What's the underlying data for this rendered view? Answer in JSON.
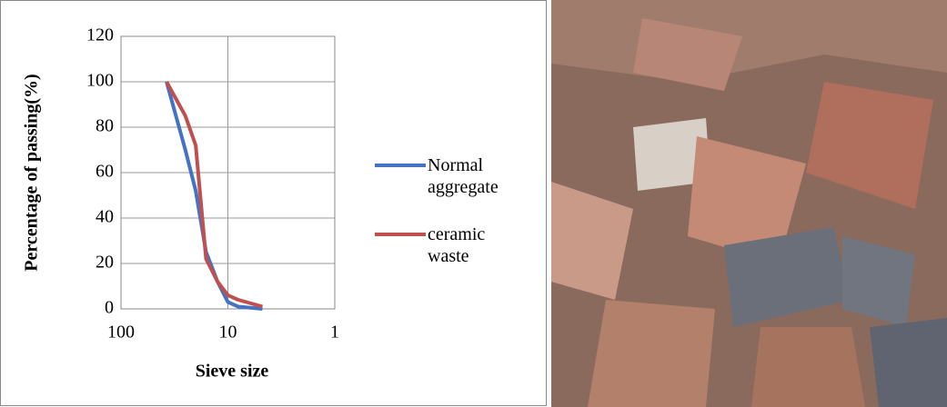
{
  "chart_data": {
    "type": "line",
    "x_label": "Sieve size",
    "y_label": "Percentage of passing(%)",
    "x": [
      37.5,
      25,
      20,
      16,
      12.5,
      10,
      8,
      4.75
    ],
    "series": [
      {
        "name": "Normal aggregate",
        "color": "#4472c4",
        "values": [
          100,
          70,
          52,
          25,
          12,
          3,
          1,
          0
        ]
      },
      {
        "name": "ceramic waste",
        "color": "#c0504d",
        "values": [
          100,
          85,
          72,
          22,
          12,
          6,
          4,
          1
        ]
      }
    ],
    "xlim": [
      100,
      1
    ],
    "xticks": [
      100,
      10,
      1
    ],
    "xscale": "log",
    "ylim": [
      0,
      120
    ],
    "yticks": [
      0,
      20,
      40,
      60,
      80,
      100,
      120
    ],
    "grid": true,
    "legend": "right"
  }
}
